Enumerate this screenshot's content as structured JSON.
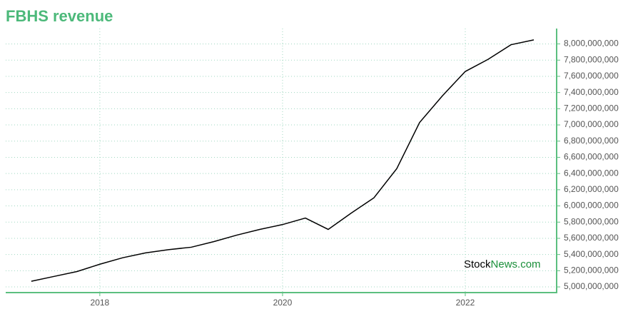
{
  "chart_data": {
    "type": "line",
    "title": "FBHS revenue",
    "x": [
      2017.25,
      2017.5,
      2017.75,
      2018,
      2018.25,
      2018.5,
      2018.75,
      2019,
      2019.25,
      2019.5,
      2019.75,
      2020,
      2020.25,
      2020.5,
      2020.75,
      2021,
      2021.25,
      2021.5,
      2021.75,
      2022,
      2022.25,
      2022.5,
      2022.75
    ],
    "series": [
      {
        "name": "Revenue",
        "color": "#000000",
        "values": [
          5070000000,
          5130000000,
          5190000000,
          5280000000,
          5360000000,
          5420000000,
          5460000000,
          5490000000,
          5560000000,
          5640000000,
          5710000000,
          5770000000,
          5850000000,
          5710000000,
          5910000000,
          6100000000,
          6460000000,
          7030000000,
          7360000000,
          7660000000,
          7810000000,
          7990000000,
          8050000000
        ]
      }
    ],
    "xlim": [
      2016.97,
      2023
    ],
    "xticks": [
      2018,
      2020,
      2022
    ],
    "ylim": [
      4930000000,
      8190000000
    ],
    "yticks": [
      {
        "value": 5000000000,
        "label": "5,000,000,000"
      },
      {
        "value": 5200000000,
        "label": "5,200,000,000"
      },
      {
        "value": 5400000000,
        "label": "5,400,000,000"
      },
      {
        "value": 5600000000,
        "label": "5,600,000,000"
      },
      {
        "value": 5800000000,
        "label": "5,800,000,000"
      },
      {
        "value": 6000000000,
        "label": "6,000,000,000"
      },
      {
        "value": 6200000000,
        "label": "6,200,000,000"
      },
      {
        "value": 6400000000,
        "label": "6,400,000,000"
      },
      {
        "value": 6600000000,
        "label": "6,600,000,000"
      },
      {
        "value": 6800000000,
        "label": "6,800,000,000"
      },
      {
        "value": 7000000000,
        "label": "7,000,000,000"
      },
      {
        "value": 7200000000,
        "label": "7,200,000,000"
      },
      {
        "value": 7400000000,
        "label": "7,400,000,000"
      },
      {
        "value": 7600000000,
        "label": "7,600,000,000"
      },
      {
        "value": 7800000000,
        "label": "7,800,000,000"
      },
      {
        "value": 8000000000,
        "label": "8,000,000,000"
      }
    ],
    "grid": true,
    "watermark": {
      "stock": "Stock",
      "news": "News.com"
    }
  }
}
